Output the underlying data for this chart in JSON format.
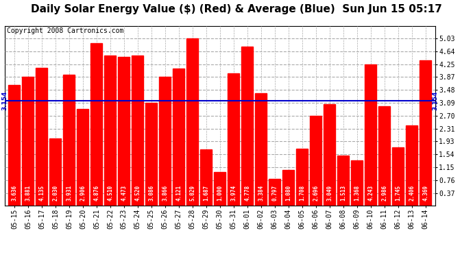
{
  "title": "Daily Solar Energy Value ($) (Red) & Average (Blue)  Sun Jun 15 05:17",
  "copyright": "Copyright 2008 Cartronics.com",
  "categories": [
    "05-15",
    "05-16",
    "05-17",
    "05-18",
    "05-19",
    "05-20",
    "05-21",
    "05-22",
    "05-23",
    "05-24",
    "05-25",
    "05-26",
    "05-27",
    "05-28",
    "05-29",
    "05-30",
    "05-31",
    "06-01",
    "06-02",
    "06-03",
    "06-04",
    "06-05",
    "06-06",
    "06-07",
    "06-08",
    "06-09",
    "06-10",
    "06-11",
    "06-12",
    "06-13",
    "06-14"
  ],
  "values": [
    3.636,
    3.881,
    4.135,
    2.03,
    3.931,
    2.906,
    4.876,
    4.51,
    4.473,
    4.52,
    3.086,
    3.866,
    4.121,
    5.029,
    1.687,
    1.0,
    3.974,
    4.778,
    3.384,
    0.797,
    1.08,
    1.708,
    2.696,
    3.049,
    1.513,
    1.368,
    4.243,
    2.986,
    1.745,
    2.406,
    4.369
  ],
  "average": 3.154,
  "bar_color": "#ff0000",
  "avg_color": "#0000cc",
  "bg_color": "#ffffff",
  "plot_bg_color": "#ffffff",
  "grid_color": "#aaaaaa",
  "ylim_max": 5.41,
  "yticks": [
    0.37,
    0.76,
    1.15,
    1.54,
    1.93,
    2.31,
    2.7,
    3.09,
    3.48,
    3.87,
    4.25,
    4.64,
    5.03
  ],
  "title_fontsize": 11,
  "copyright_fontsize": 7,
  "tick_fontsize": 7,
  "label_fontsize": 6,
  "bar_width": 0.85
}
